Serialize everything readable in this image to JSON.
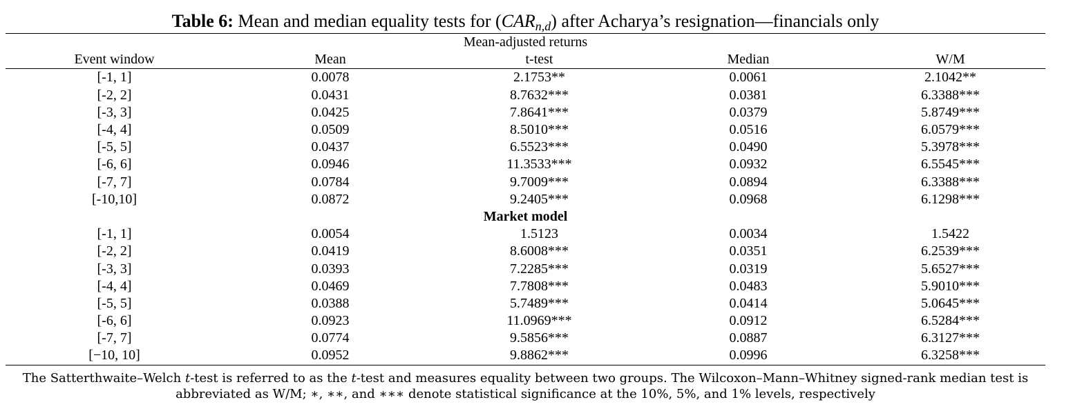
{
  "caption": {
    "label": "Table 6:",
    "text_before": " Mean and median equality tests for (",
    "math_main": "CAR",
    "math_sub": "n,d",
    "text_after": ") after Acharya’s resignation—financials only"
  },
  "columns": [
    "Event window",
    "Mean",
    "t-test",
    "Median",
    "W/M"
  ],
  "panels": [
    {
      "title": "Mean-adjusted returns",
      "rows": [
        [
          "[-1, 1]",
          "0.0078",
          "2.1753**",
          "0.0061",
          "2.1042**"
        ],
        [
          "[-2, 2]",
          "0.0431",
          "8.7632***",
          "0.0381",
          "6.3388***"
        ],
        [
          "[-3, 3]",
          "0.0425",
          "7.8641***",
          "0.0379",
          "5.8749***"
        ],
        [
          "[-4, 4]",
          "0.0509",
          "8.5010***",
          "0.0516",
          "6.0579***"
        ],
        [
          "[-5, 5]",
          "0.0437",
          "6.5523***",
          "0.0490",
          "5.3978***"
        ],
        [
          "[-6, 6]",
          "0.0946",
          "11.3533***",
          "0.0932",
          "6.5545***"
        ],
        [
          "[-7, 7]",
          "0.0784",
          "9.7009***",
          "0.0894",
          "6.3388***"
        ],
        [
          "[-10,10]",
          "0.0872",
          "9.2405***",
          "0.0968",
          "6.1298***"
        ]
      ]
    },
    {
      "title": "Market model",
      "rows": [
        [
          "[-1, 1]",
          "0.0054",
          "1.5123",
          "0.0034",
          "1.5422"
        ],
        [
          "[-2, 2]",
          "0.0419",
          "8.6008***",
          "0.0351",
          "6.2539***"
        ],
        [
          "[-3, 3]",
          "0.0393",
          "7.2285***",
          "0.0319",
          "5.6527***"
        ],
        [
          "[-4, 4]",
          "0.0469",
          "7.7808***",
          "0.0483",
          "5.9010***"
        ],
        [
          "[-5, 5]",
          "0.0388",
          "5.7489***",
          "0.0414",
          "5.0645***"
        ],
        [
          "[-6, 6]",
          "0.0923",
          "11.0969***",
          "0.0912",
          "6.5284***"
        ],
        [
          "[-7, 7]",
          "0.0774",
          "9.5856***",
          "0.0887",
          "6.3127***"
        ],
        [
          "[−10, 10]",
          "0.0952",
          "9.8862***",
          "0.0996",
          "6.3258***"
        ]
      ]
    }
  ],
  "note": {
    "p1": "The Satterthwaite–Welch ",
    "t1": "t",
    "p2": "-test is referred to as the ",
    "t2": "t",
    "p3": "-test and measures equality between two groups. The Wilcoxon–Mann–Whitney signed-rank median test is",
    "line2": "abbreviated as W/M; ∗, ∗∗, and ∗∗∗ denote statistical significance at the 10%, 5%, and 1% levels, respectively"
  }
}
